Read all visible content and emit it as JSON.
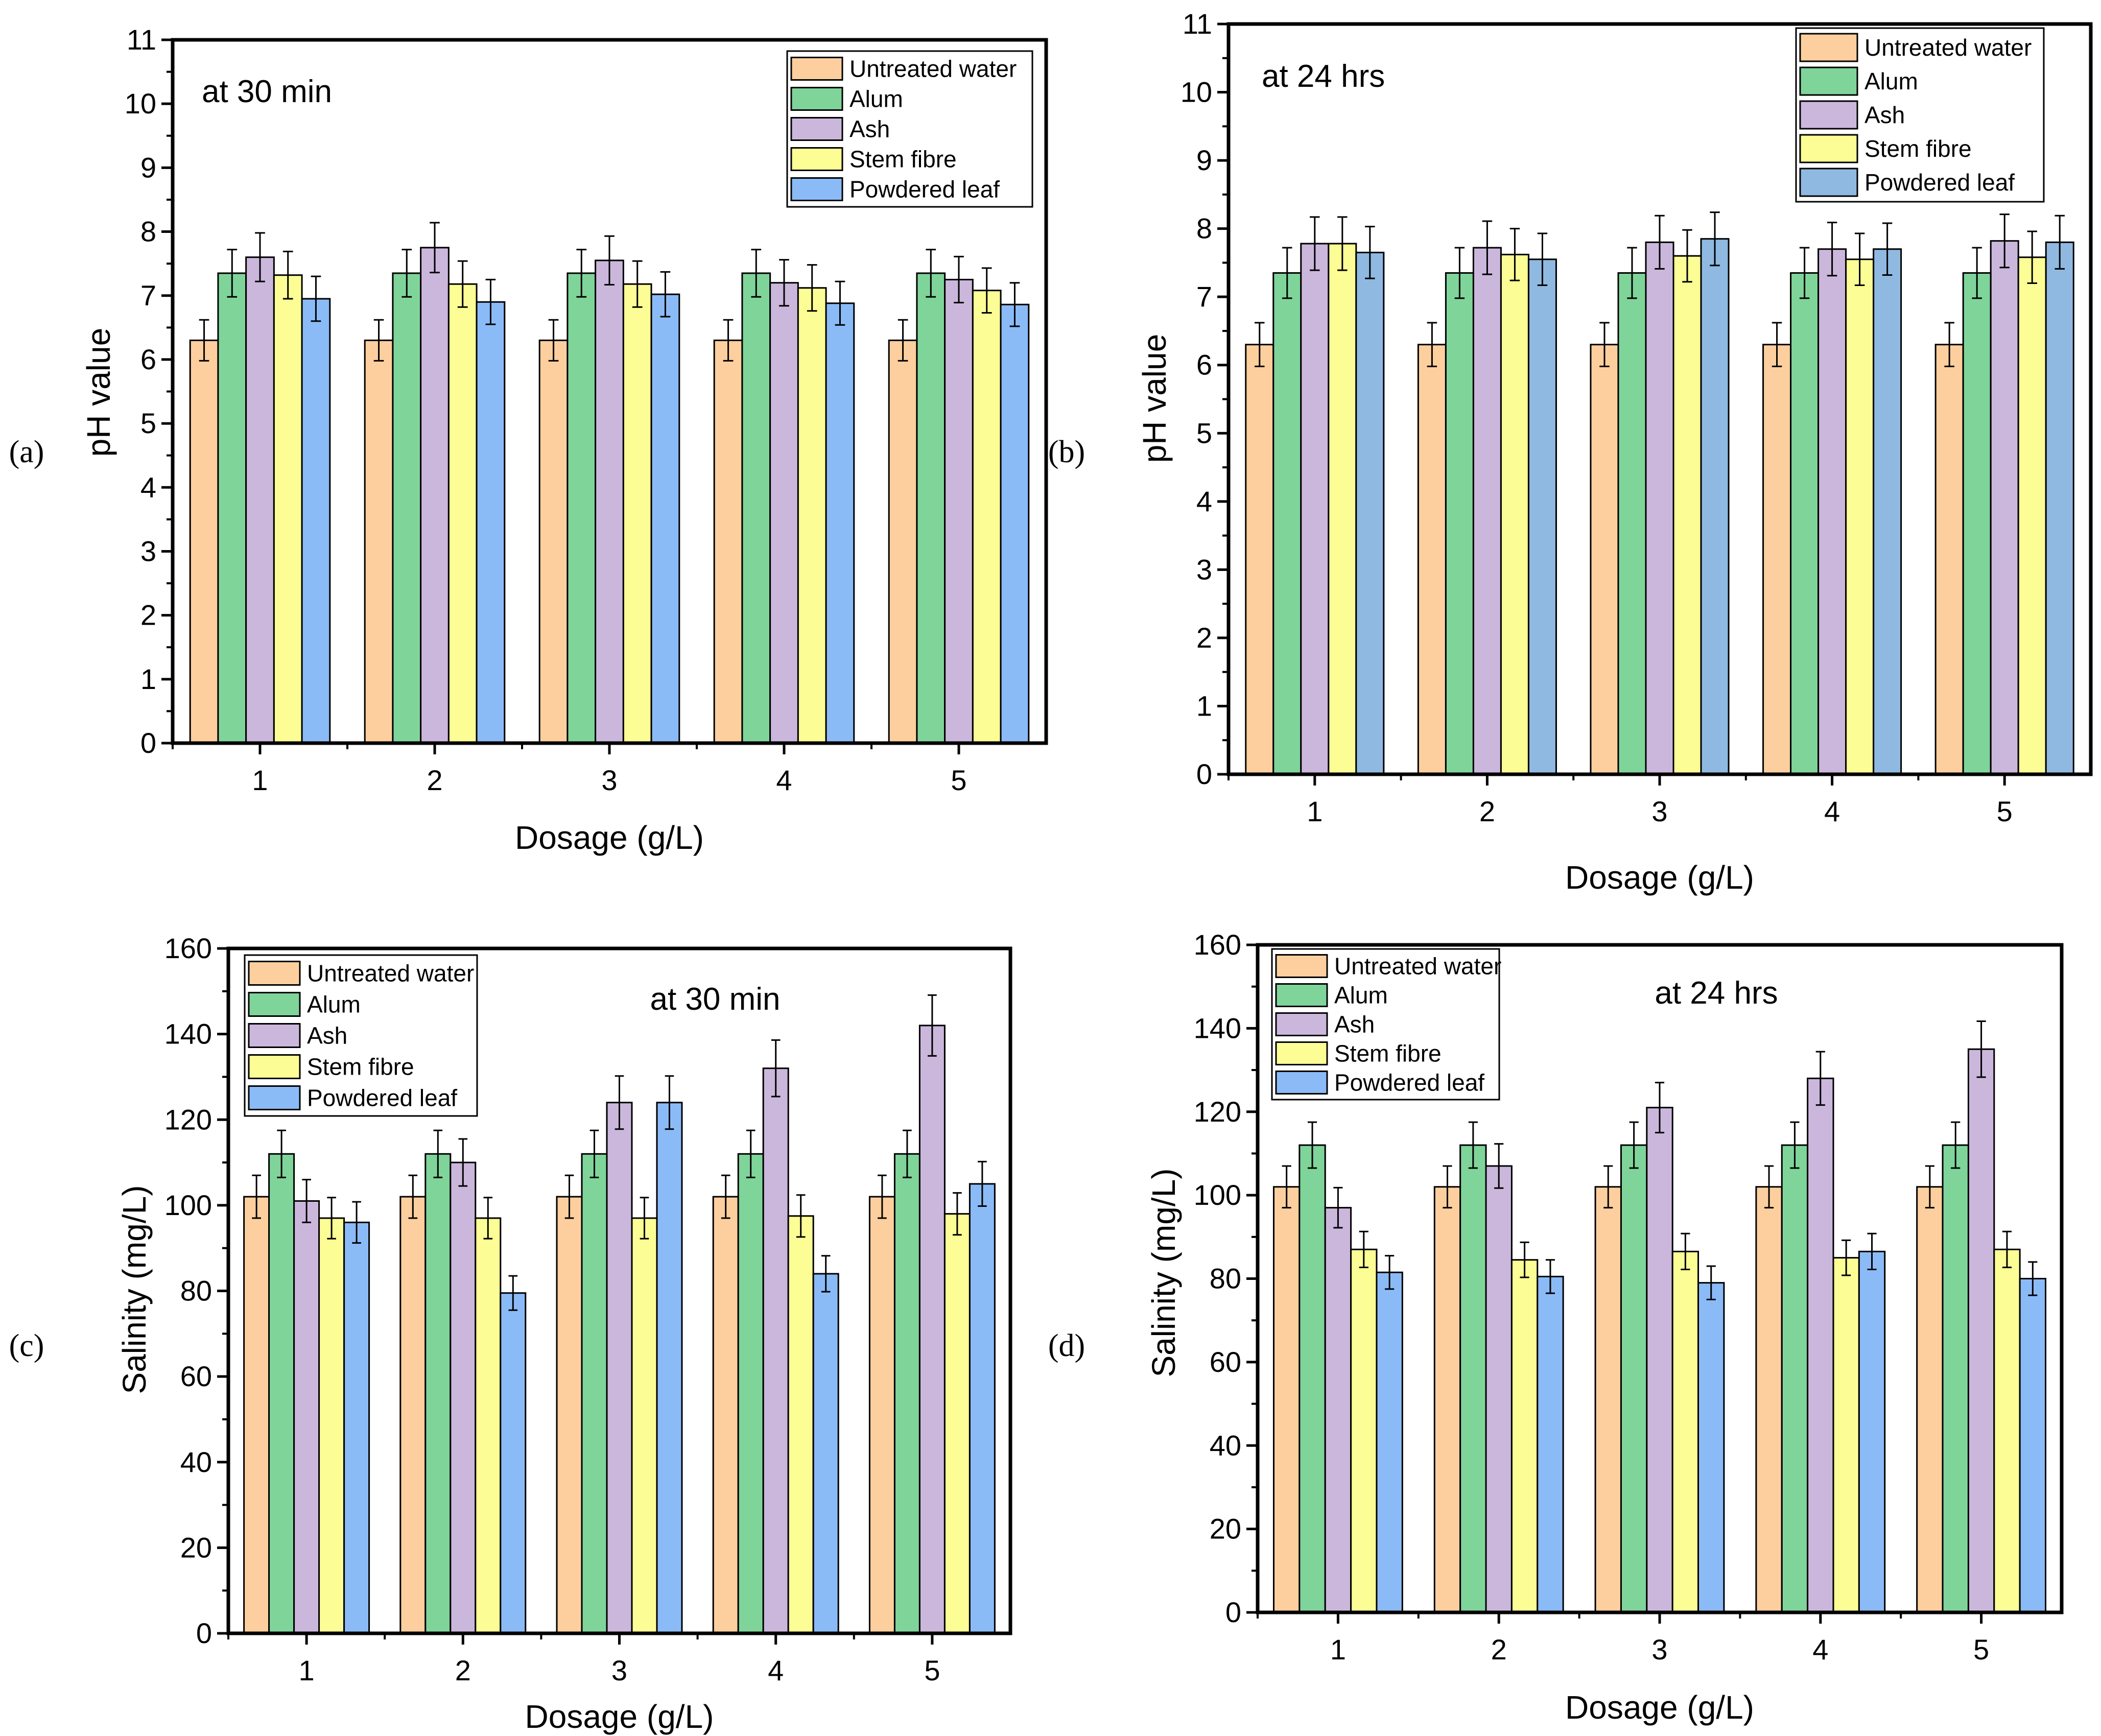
{
  "chart_data": [
    {
      "id": "a",
      "panel_label": "(a)",
      "type": "bar",
      "annotation": "at 30 min",
      "xlabel": "Dosage (g/L)",
      "ylabel": "pH value",
      "categories": [
        "1",
        "2",
        "3",
        "4",
        "5"
      ],
      "ylim": [
        0,
        11
      ],
      "yticks": [
        "0",
        "1",
        "2",
        "3",
        "4",
        "5",
        "6",
        "7",
        "8",
        "9",
        "10",
        "11"
      ],
      "legend_position": "top-right",
      "series": [
        {
          "name": "Untreated water",
          "color": "#fdcf9e",
          "values": [
            6.3,
            6.3,
            6.3,
            6.3,
            6.3
          ],
          "errors": [
            0.32,
            0.32,
            0.32,
            0.32,
            0.32
          ]
        },
        {
          "name": "Alum",
          "color": "#7fd49a",
          "values": [
            7.35,
            7.35,
            7.35,
            7.35,
            7.35
          ],
          "errors": [
            0.37,
            0.37,
            0.37,
            0.37,
            0.37
          ]
        },
        {
          "name": "Ash",
          "color": "#cbb7dc",
          "values": [
            7.6,
            7.75,
            7.55,
            7.2,
            7.25
          ],
          "errors": [
            0.38,
            0.39,
            0.38,
            0.36,
            0.36
          ]
        },
        {
          "name": "Stem fibre",
          "color": "#fdfd96",
          "values": [
            7.32,
            7.18,
            7.18,
            7.12,
            7.08
          ],
          "errors": [
            0.37,
            0.36,
            0.36,
            0.36,
            0.35
          ]
        },
        {
          "name": "Powdered leaf",
          "color": "#8bbbf7",
          "values": [
            6.95,
            6.9,
            7.02,
            6.88,
            6.86
          ],
          "errors": [
            0.35,
            0.35,
            0.35,
            0.34,
            0.34
          ]
        }
      ]
    },
    {
      "id": "b",
      "panel_label": "(b)",
      "type": "bar",
      "annotation": "at 24 hrs",
      "xlabel": "Dosage (g/L)",
      "ylabel": "pH value",
      "categories": [
        "1",
        "2",
        "3",
        "4",
        "5"
      ],
      "ylim": [
        0,
        11
      ],
      "yticks": [
        "0",
        "1",
        "2",
        "3",
        "4",
        "5",
        "6",
        "7",
        "8",
        "9",
        "10",
        "11"
      ],
      "legend_position": "top-right",
      "series": [
        {
          "name": "Untreated water",
          "color": "#fdcf9e",
          "values": [
            6.3,
            6.3,
            6.3,
            6.3,
            6.3
          ],
          "errors": [
            0.32,
            0.32,
            0.32,
            0.32,
            0.32
          ]
        },
        {
          "name": "Alum",
          "color": "#7fd49a",
          "values": [
            7.35,
            7.35,
            7.35,
            7.35,
            7.35
          ],
          "errors": [
            0.37,
            0.37,
            0.37,
            0.37,
            0.37
          ]
        },
        {
          "name": "Ash",
          "color": "#cbb7dc",
          "values": [
            7.78,
            7.72,
            7.8,
            7.7,
            7.82
          ],
          "errors": [
            0.39,
            0.39,
            0.39,
            0.39,
            0.39
          ]
        },
        {
          "name": "Stem fibre",
          "color": "#fdfd96",
          "values": [
            7.78,
            7.62,
            7.6,
            7.55,
            7.58
          ],
          "errors": [
            0.39,
            0.38,
            0.38,
            0.38,
            0.38
          ]
        },
        {
          "name": "Powdered leaf",
          "color": "#8fb9e0",
          "values": [
            7.65,
            7.55,
            7.85,
            7.7,
            7.8
          ],
          "errors": [
            0.38,
            0.38,
            0.39,
            0.38,
            0.39
          ]
        }
      ]
    },
    {
      "id": "c",
      "panel_label": "(c)",
      "type": "bar",
      "annotation": "at 30 min",
      "xlabel": "Dosage (g/L)",
      "ylabel": "Salinity (mg/L)",
      "categories": [
        "1",
        "2",
        "3",
        "4",
        "5"
      ],
      "ylim": [
        0,
        160
      ],
      "yticks": [
        "0",
        "20",
        "40",
        "60",
        "80",
        "100",
        "120",
        "140",
        "160"
      ],
      "legend_position": "top-left",
      "series": [
        {
          "name": "Untreated water",
          "color": "#fdcf9e",
          "values": [
            102,
            102,
            102,
            102,
            102
          ],
          "errors": [
            5,
            5,
            5,
            5,
            5
          ]
        },
        {
          "name": "Alum",
          "color": "#7fd49a",
          "values": [
            112,
            112,
            112,
            112,
            112
          ],
          "errors": [
            5.5,
            5.5,
            5.5,
            5.5,
            5.5
          ]
        },
        {
          "name": "Ash",
          "color": "#cbb7dc",
          "values": [
            101,
            110,
            124,
            132,
            142
          ],
          "errors": [
            5,
            5.5,
            6.2,
            6.6,
            7.1
          ]
        },
        {
          "name": "Stem fibre",
          "color": "#fdfd96",
          "values": [
            97,
            97,
            97,
            97.5,
            98
          ],
          "errors": [
            4.8,
            4.8,
            4.8,
            4.9,
            4.9
          ]
        },
        {
          "name": "Powdered leaf",
          "color": "#8bbbf7",
          "values": [
            96,
            79.5,
            124,
            84,
            105
          ],
          "errors": [
            4.8,
            4,
            6.2,
            4.2,
            5.2
          ]
        }
      ]
    },
    {
      "id": "d",
      "panel_label": "(d)",
      "type": "bar",
      "annotation": "at 24 hrs",
      "xlabel": "Dosage (g/L)",
      "ylabel": "Salinity (mg/L)",
      "categories": [
        "1",
        "2",
        "3",
        "4",
        "5"
      ],
      "ylim": [
        0,
        160
      ],
      "yticks": [
        "0",
        "20",
        "40",
        "60",
        "80",
        "100",
        "120",
        "140",
        "160"
      ],
      "legend_position": "top-left",
      "series": [
        {
          "name": "Untreated water",
          "color": "#fdcf9e",
          "values": [
            102,
            102,
            102,
            102,
            102
          ],
          "errors": [
            5,
            5,
            5,
            5,
            5
          ]
        },
        {
          "name": "Alum",
          "color": "#7fd49a",
          "values": [
            112,
            112,
            112,
            112,
            112
          ],
          "errors": [
            5.5,
            5.5,
            5.5,
            5.5,
            5.5
          ]
        },
        {
          "name": "Ash",
          "color": "#cbb7dc",
          "values": [
            97,
            107,
            121,
            128,
            135
          ],
          "errors": [
            4.8,
            5.3,
            6,
            6.4,
            6.7
          ]
        },
        {
          "name": "Stem fibre",
          "color": "#fdfd96",
          "values": [
            87,
            84.5,
            86.5,
            85,
            87
          ],
          "errors": [
            4.3,
            4.2,
            4.3,
            4.2,
            4.3
          ]
        },
        {
          "name": "Powdered leaf",
          "color": "#8bbbf7",
          "values": [
            81.5,
            80.5,
            79,
            86.5,
            80
          ],
          "errors": [
            4,
            4,
            4,
            4.3,
            4
          ]
        }
      ]
    }
  ]
}
